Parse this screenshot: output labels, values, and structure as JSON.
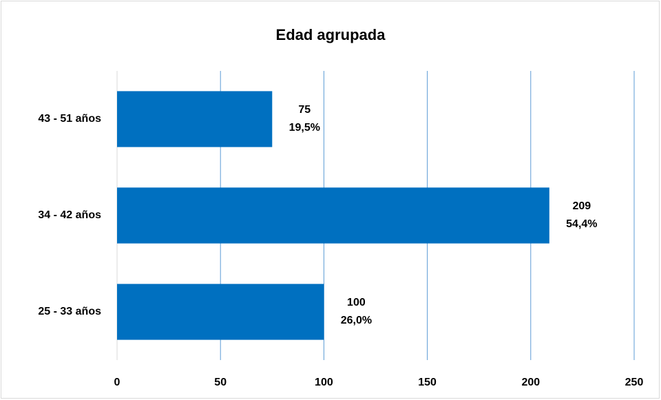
{
  "chart_data": {
    "type": "bar",
    "orientation": "horizontal",
    "title": "Edad agrupada",
    "categories": [
      "43 - 51 años",
      "34 - 42 años",
      "25 - 33 años"
    ],
    "values": [
      75,
      209,
      100
    ],
    "percent_labels": [
      "19,5%",
      "54,4%",
      "26,0%"
    ],
    "color": "#0070c0",
    "xlim": [
      0,
      250
    ],
    "xticks": [
      0,
      50,
      100,
      150,
      200,
      250
    ],
    "grid": true
  }
}
